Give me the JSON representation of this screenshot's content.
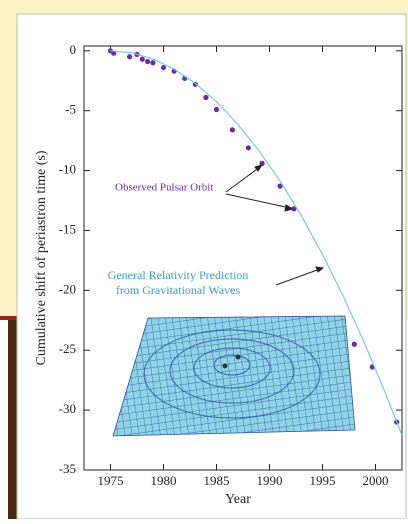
{
  "chart_data": {
    "type": "scatter",
    "xlabel": "Year",
    "ylabel": "Cumulative shift of periastron time (s)",
    "xlim": [
      1972.5,
      2002.5
    ],
    "ylim": [
      -35,
      0.4
    ],
    "xticks": [
      1975,
      1980,
      1985,
      1990,
      1995,
      2000
    ],
    "yticks": [
      0,
      -5,
      -10,
      -15,
      -20,
      -25,
      -30,
      -35
    ],
    "annotations": [
      "Observed Pulsar Orbit",
      "General Relativity Prediction",
      "from Gravitational Waves"
    ],
    "series": [
      {
        "mode": "markers",
        "color": "#6a2aa0",
        "x": [
          1975.0,
          1975.3,
          1976.8,
          1977.5,
          1978.0,
          1978.5,
          1979.0,
          1980.0,
          1981.0,
          1982.0,
          1983.0,
          1984.0,
          1985.0,
          1986.5,
          1988.0,
          1989.3,
          1991.0,
          1992.3,
          1998.0,
          1999.7,
          2002.0
        ],
        "values": [
          0,
          -0.2,
          -0.5,
          -0.3,
          -0.7,
          -0.9,
          -1.0,
          -1.4,
          -1.7,
          -2.3,
          -2.8,
          -3.9,
          -4.9,
          -6.6,
          -8.1,
          -9.4,
          -11.3,
          -13.2,
          -24.5,
          -26.4,
          -31.0
        ]
      },
      {
        "mode": "line",
        "color": "#7cc6dd",
        "x": [
          1975,
          1977,
          1979,
          1981,
          1983,
          1985,
          1987,
          1989,
          1991,
          1993,
          1995,
          1997,
          1999,
          2001,
          2002.5
        ],
        "values": [
          0,
          -0.17,
          -0.68,
          -1.53,
          -2.72,
          -4.25,
          -6.12,
          -8.33,
          -10.88,
          -13.77,
          -17.0,
          -20.57,
          -24.48,
          -28.73,
          -32.1
        ]
      }
    ]
  }
}
